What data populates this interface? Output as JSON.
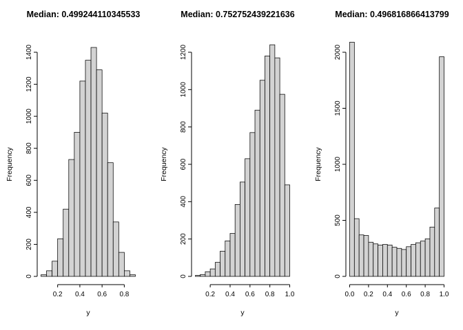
{
  "figure": {
    "background": "#ffffff",
    "bar_fill": "#d3d3d3",
    "bar_stroke": "#000000",
    "axis_color": "#000000",
    "text_color": "#000000"
  },
  "chart_data": [
    {
      "type": "bar",
      "chart_kind": "histogram",
      "title": "Median: 0.499244110345533",
      "xlabel": "y",
      "ylabel": "Frequency",
      "bins": {
        "start": 0.05,
        "width": 0.05
      },
      "counts": [
        10,
        35,
        95,
        235,
        420,
        730,
        900,
        1220,
        1350,
        1430,
        1290,
        1020,
        710,
        340,
        150,
        35,
        10
      ],
      "x_ticks": [
        0.2,
        0.4,
        0.6,
        0.8
      ],
      "x_tick_labels": [
        "0.2",
        "0.4",
        "0.6",
        "0.8"
      ],
      "y_ticks": [
        0,
        200,
        400,
        600,
        800,
        1000,
        1200,
        1400
      ],
      "y_tick_labels": [
        "0",
        "200",
        "400",
        "600",
        "800",
        "1000",
        "1200",
        "1400"
      ],
      "xlim": [
        0.05,
        0.9
      ],
      "ylim": [
        0,
        1400
      ],
      "grid": false,
      "legend": null
    },
    {
      "type": "bar",
      "chart_kind": "histogram",
      "title": "Median: 0.752752439221636",
      "xlabel": "y",
      "ylabel": "Frequency",
      "bins": {
        "start": 0.05,
        "width": 0.05
      },
      "counts": [
        5,
        10,
        25,
        40,
        75,
        135,
        190,
        230,
        385,
        505,
        630,
        770,
        890,
        1050,
        1180,
        1240,
        1170,
        975,
        490
      ],
      "x_ticks": [
        0.2,
        0.4,
        0.6,
        0.8,
        1.0
      ],
      "x_tick_labels": [
        "0.2",
        "0.4",
        "0.6",
        "0.8",
        "1.0"
      ],
      "y_ticks": [
        0,
        200,
        400,
        600,
        800,
        1000,
        1200
      ],
      "y_tick_labels": [
        "0",
        "200",
        "400",
        "600",
        "800",
        "1000",
        "1200"
      ],
      "xlim": [
        0.05,
        1.0
      ],
      "ylim": [
        0,
        1200
      ],
      "grid": false,
      "legend": null
    },
    {
      "type": "bar",
      "chart_kind": "histogram",
      "title": "Median: 0.496816866413799",
      "xlabel": "y",
      "ylabel": "Frequency",
      "bins": {
        "start": 0.0,
        "width": 0.05
      },
      "counts": [
        2090,
        515,
        370,
        365,
        305,
        290,
        280,
        285,
        280,
        260,
        250,
        240,
        265,
        285,
        300,
        315,
        335,
        440,
        610,
        1960
      ],
      "x_ticks": [
        0.0,
        0.2,
        0.4,
        0.6,
        0.8,
        1.0
      ],
      "x_tick_labels": [
        "0.0",
        "0.2",
        "0.4",
        "0.6",
        "0.8",
        "1.0"
      ],
      "y_ticks": [
        0,
        500,
        1000,
        1500,
        2000
      ],
      "y_tick_labels": [
        "0",
        "500",
        "1000",
        "1500",
        "2000"
      ],
      "xlim": [
        0.0,
        1.0
      ],
      "ylim": [
        0,
        2000
      ],
      "grid": false,
      "legend": null
    }
  ]
}
